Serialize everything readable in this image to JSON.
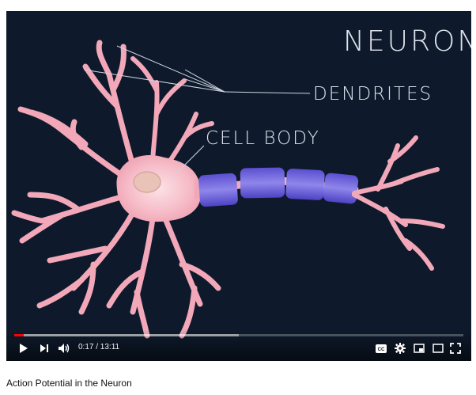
{
  "video": {
    "title": "Action Potential in the Neuron",
    "scene": {
      "title": "NEURON",
      "labels": {
        "dendrites": "DENDRITES",
        "cell_body": "CELL BODY"
      }
    }
  },
  "player": {
    "time_display": "0:17 / 13:11",
    "progress_fraction": 0.022,
    "buffered_fraction": 0.5
  },
  "icons": {
    "play": "play-icon",
    "next": "next-icon",
    "volume": "volume-icon",
    "captions": "captions-icon",
    "settings": "gear-icon",
    "miniplayer": "miniplayer-icon",
    "theater": "theater-mode-icon",
    "fullscreen": "fullscreen-icon"
  },
  "colors": {
    "background": "#0e1a2c",
    "neuron": "#f7b6c2",
    "myelin": "#6f62d9",
    "progress": "#ff0000"
  }
}
